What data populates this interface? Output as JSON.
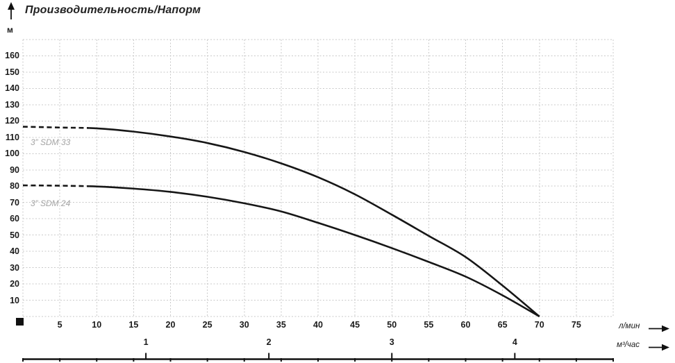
{
  "header": {
    "title": "Производительность/Напорм"
  },
  "colors": {
    "curve": "#161616",
    "grid": "#c9c9c9",
    "series_label": "#a3a3a3",
    "text": "#1a1a1a"
  },
  "chart_data": {
    "type": "line",
    "title": "Производительность/Напорм",
    "grid": true,
    "y_axis": {
      "unit": "м",
      "min": 0,
      "max": 170,
      "step": 10,
      "labeled_ticks": [
        160,
        150,
        140,
        130,
        120,
        110,
        100,
        90,
        80,
        70,
        60,
        50,
        40,
        30,
        20,
        10
      ]
    },
    "x_axis_lmin": {
      "unit": "л/мин",
      "min": 0,
      "max": 80,
      "step": 5,
      "labeled_ticks": [
        5,
        10,
        15,
        20,
        25,
        30,
        35,
        40,
        45,
        50,
        55,
        60,
        65,
        70,
        75
      ]
    },
    "x_axis_m3h": {
      "unit": "м³/час",
      "labeled_ticks": [
        1,
        2,
        3,
        4
      ],
      "lmin_per_unit": 16.6667
    },
    "flow_lmin": [
      0,
      5,
      10,
      15,
      20,
      25,
      30,
      35,
      40,
      45,
      50,
      55,
      60,
      65,
      70
    ],
    "series": [
      {
        "name": "3\" SDM 33",
        "label": "3” SDM 33",
        "head_m": [
          116.5,
          116,
          115.5,
          113.5,
          110.5,
          106.5,
          101,
          94,
          85.5,
          75,
          62.5,
          49.5,
          36.5,
          19,
          0
        ],
        "dashed_until_lmin": 9
      },
      {
        "name": "3\" SDM 24",
        "label": "3” SDM 24",
        "head_m": [
          80.5,
          80.3,
          79.8,
          78.5,
          76.5,
          73.5,
          69.5,
          64.5,
          57.5,
          50,
          42,
          33.5,
          24.5,
          13,
          0
        ],
        "dashed_until_lmin": 9
      }
    ]
  }
}
